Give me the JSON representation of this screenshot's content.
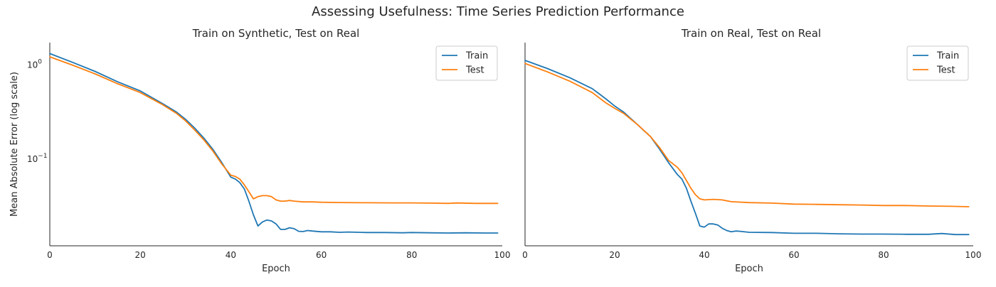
{
  "figure": {
    "title": "Assessing Usefulness: Time Series Prediction Performance"
  },
  "chart_data": [
    {
      "type": "line",
      "title": "Train on Synthetic, Test on Real",
      "xlabel": "Epoch",
      "ylabel": "Mean Absolute Error (log scale)",
      "yscale": "log",
      "xlim": [
        0,
        100
      ],
      "ylim": [
        0.0117,
        1.7
      ],
      "xticks": [
        {
          "value": 0,
          "label": "0"
        },
        {
          "value": 20,
          "label": "20"
        },
        {
          "value": 40,
          "label": "40"
        },
        {
          "value": 60,
          "label": "60"
        },
        {
          "value": 80,
          "label": "80"
        },
        {
          "value": 100,
          "label": "100"
        }
      ],
      "yticks": [
        {
          "value": 1,
          "base": "10",
          "exp": "0"
        },
        {
          "value": 0.1,
          "base": "10",
          "exp": "−1"
        }
      ],
      "grid": false,
      "legend": "top-right",
      "series": [
        {
          "name": "Train",
          "color": "#1f77b4",
          "x": [
            0,
            5,
            10,
            15,
            20,
            25,
            28,
            30,
            32,
            34,
            36,
            38,
            40,
            41,
            42,
            43,
            44,
            45,
            46,
            47,
            48,
            49,
            50,
            51,
            52,
            53,
            54,
            55,
            56,
            57,
            58,
            60,
            62,
            64,
            66,
            70,
            74,
            78,
            80,
            84,
            88,
            92,
            96,
            99
          ],
          "y": [
            1.3,
            1.05,
            0.84,
            0.65,
            0.52,
            0.38,
            0.31,
            0.26,
            0.21,
            0.165,
            0.125,
            0.09,
            0.063,
            0.06,
            0.055,
            0.047,
            0.035,
            0.025,
            0.019,
            0.021,
            0.022,
            0.0215,
            0.02,
            0.0175,
            0.0175,
            0.0182,
            0.0178,
            0.0167,
            0.0166,
            0.017,
            0.0168,
            0.0165,
            0.0165,
            0.0163,
            0.0164,
            0.0162,
            0.0162,
            0.0161,
            0.0162,
            0.0161,
            0.016,
            0.0161,
            0.016,
            0.016
          ]
        },
        {
          "name": "Test",
          "color": "#ff7f0e",
          "x": [
            0,
            5,
            10,
            15,
            20,
            25,
            28,
            30,
            32,
            34,
            36,
            38,
            40,
            41,
            42,
            43,
            44,
            45,
            46,
            47,
            48,
            49,
            50,
            51,
            52,
            53,
            54,
            56,
            58,
            60,
            64,
            70,
            76,
            80,
            84,
            88,
            90,
            94,
            99
          ],
          "y": [
            1.2,
            0.98,
            0.79,
            0.62,
            0.5,
            0.37,
            0.3,
            0.25,
            0.2,
            0.158,
            0.12,
            0.087,
            0.066,
            0.064,
            0.06,
            0.052,
            0.044,
            0.037,
            0.039,
            0.04,
            0.04,
            0.039,
            0.036,
            0.035,
            0.035,
            0.0355,
            0.035,
            0.0343,
            0.0343,
            0.034,
            0.0338,
            0.0336,
            0.0335,
            0.0335,
            0.0333,
            0.0331,
            0.0334,
            0.0331,
            0.0331
          ]
        }
      ]
    },
    {
      "type": "line",
      "title": "Train on Real, Test on Real",
      "xlabel": "Epoch",
      "ylabel": "",
      "yscale": "log",
      "xlim": [
        0,
        100
      ],
      "ylim": [
        0.0117,
        1.7
      ],
      "xticks": [
        {
          "value": 0,
          "label": "0"
        },
        {
          "value": 20,
          "label": "20"
        },
        {
          "value": 40,
          "label": "40"
        },
        {
          "value": 60,
          "label": "60"
        },
        {
          "value": 80,
          "label": "80"
        },
        {
          "value": 100,
          "label": "100"
        }
      ],
      "yticks": [],
      "grid": false,
      "legend": "top-right",
      "series": [
        {
          "name": "Train",
          "color": "#1f77b4",
          "x": [
            0,
            5,
            10,
            15,
            18,
            20,
            22,
            25,
            28,
            30,
            32,
            34,
            35,
            36,
            37,
            38,
            39,
            40,
            41,
            42,
            43,
            44,
            45,
            46,
            47,
            48,
            50,
            55,
            60,
            65,
            70,
            75,
            80,
            85,
            90,
            93,
            96,
            99
          ],
          "y": [
            1.1,
            0.9,
            0.72,
            0.55,
            0.43,
            0.36,
            0.31,
            0.23,
            0.17,
            0.125,
            0.09,
            0.067,
            0.06,
            0.048,
            0.035,
            0.026,
            0.019,
            0.0185,
            0.02,
            0.02,
            0.0195,
            0.018,
            0.017,
            0.0165,
            0.0168,
            0.0167,
            0.0163,
            0.0162,
            0.0159,
            0.0159,
            0.0157,
            0.0156,
            0.0156,
            0.0155,
            0.0155,
            0.0158,
            0.0154,
            0.0154
          ]
        },
        {
          "name": "Test",
          "color": "#ff7f0e",
          "x": [
            0,
            5,
            10,
            15,
            18,
            20,
            22,
            25,
            28,
            30,
            32,
            34,
            35,
            36,
            37,
            38,
            39,
            40,
            42,
            44,
            46,
            50,
            55,
            60,
            65,
            70,
            75,
            80,
            85,
            90,
            95,
            99
          ],
          "y": [
            1.02,
            0.83,
            0.66,
            0.5,
            0.39,
            0.34,
            0.3,
            0.23,
            0.17,
            0.13,
            0.095,
            0.08,
            0.07,
            0.058,
            0.048,
            0.041,
            0.037,
            0.036,
            0.0365,
            0.036,
            0.0345,
            0.0337,
            0.0333,
            0.0325,
            0.0323,
            0.032,
            0.0318,
            0.0314,
            0.0314,
            0.031,
            0.0308,
            0.0305
          ]
        }
      ]
    }
  ]
}
